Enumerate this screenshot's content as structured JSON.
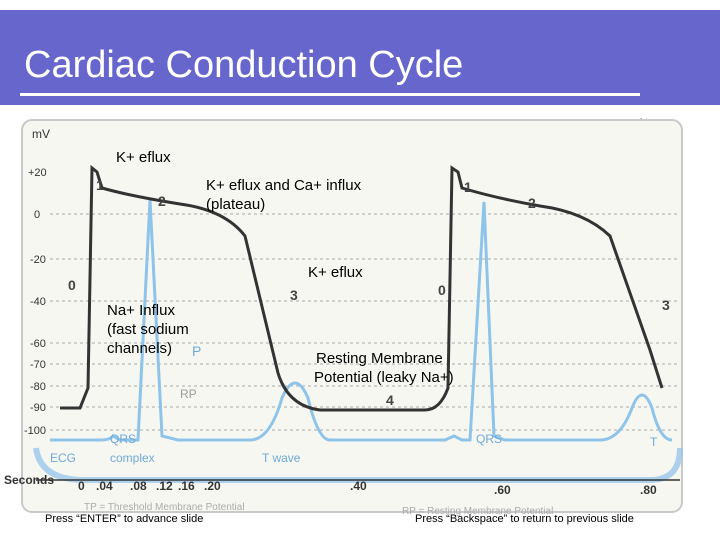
{
  "slide": {
    "title": "Cardiac Conduction Cycle"
  },
  "graph": {
    "y_axis_unit": "mV",
    "y_ticks": [
      "+20",
      "0",
      "-20",
      "-40",
      "-60",
      "-70",
      "-80",
      "-90",
      "-100"
    ],
    "x_axis_label": "Seconds",
    "x_ticks": [
      "0",
      ".04",
      ".08",
      ".12",
      ".16",
      ".20",
      ".40",
      ".60",
      ".80"
    ],
    "phase_labels_cycle1": [
      "0",
      "1",
      "2",
      "3",
      "4"
    ],
    "phase_labels_cycle2": [
      "0",
      "1",
      "2",
      "3"
    ],
    "ecg_labels": {
      "p1": "P",
      "qrs1": "QRS",
      "complex": "complex",
      "ecg": "ECG",
      "rp1": "RP",
      "t_wave": "T wave",
      "qrs2": "QRS",
      "t2": "T",
      "tp": "TP = Threshold Membrane Potential",
      "rp_def": "RP = Resting Membrane Potential"
    }
  },
  "annotations": {
    "k_eflux_top": "K+ eflux",
    "k_eflux_ca": "K+ eflux and Ca+ influx",
    "plateau": "(plateau)",
    "k_eflux_mid": "K+ eflux",
    "na_influx_1": "Na+ Influx",
    "na_influx_2": "(fast sodium",
    "na_influx_3": "channels)",
    "resting_1": "Resting Membrane",
    "resting_2": "Potential (leaky Na+)"
  },
  "footer": {
    "left": "Press “ENTER” to advance slide",
    "right": "Press “Backspace” to return to previous slide"
  },
  "icons": [
    "speaker-icon",
    "speaker-icon"
  ]
}
